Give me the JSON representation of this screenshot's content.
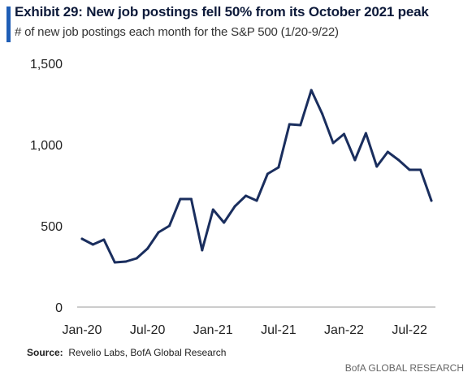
{
  "header": {
    "title": "Exhibit 29: New job postings fell 50% from its October 2021 peak",
    "subtitle": "# of new job postings each month for the S&P 500 (1/20-9/22)"
  },
  "footer": {
    "source_label": "Source:",
    "source_text": "Revelio Labs, BofA Global Research",
    "credit": "BofA GLOBAL RESEARCH"
  },
  "colors": {
    "line": "#1a2e5e",
    "accent": "#1f5eb6",
    "axis": "#999999"
  },
  "chart_data": {
    "type": "line",
    "title": "Exhibit 29: New job postings fell 50% from its October 2021 peak",
    "subtitle": "# of new job postings each month for the S&P 500 (1/20-9/22)",
    "xlabel": "",
    "ylabel": "",
    "ylim": [
      0,
      1500
    ],
    "yticks": [
      0,
      500,
      1000,
      1500
    ],
    "ytick_labels": [
      "0",
      "500",
      "1,000",
      "1,500"
    ],
    "xtick_labels": [
      "Jan-20",
      "Jul-20",
      "Jan-21",
      "Jul-21",
      "Jan-22",
      "Jul-22"
    ],
    "xtick_months": [
      "2020-01",
      "2020-07",
      "2021-01",
      "2021-07",
      "2022-01",
      "2022-07"
    ],
    "grid": false,
    "legend": "none",
    "x": [
      "2020-01",
      "2020-02",
      "2020-03",
      "2020-04",
      "2020-05",
      "2020-06",
      "2020-07",
      "2020-08",
      "2020-09",
      "2020-10",
      "2020-11",
      "2020-12",
      "2021-01",
      "2021-02",
      "2021-03",
      "2021-04",
      "2021-05",
      "2021-06",
      "2021-07",
      "2021-08",
      "2021-09",
      "2021-10",
      "2021-11",
      "2021-12",
      "2022-01",
      "2022-02",
      "2022-03",
      "2022-04",
      "2022-05",
      "2022-06",
      "2022-07",
      "2022-08",
      "2022-09"
    ],
    "values": [
      420,
      385,
      415,
      275,
      280,
      300,
      360,
      460,
      500,
      665,
      665,
      350,
      600,
      520,
      620,
      685,
      655,
      820,
      860,
      1125,
      1120,
      1335,
      1190,
      1010,
      1065,
      905,
      1070,
      865,
      955,
      905,
      845,
      845,
      655
    ]
  }
}
